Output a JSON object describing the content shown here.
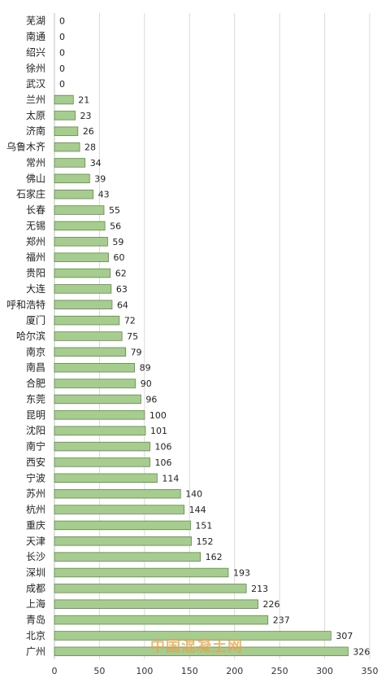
{
  "chart_data": {
    "type": "bar",
    "orientation": "horizontal",
    "categories": [
      "芜湖",
      "南通",
      "绍兴",
      "徐州",
      "武汉",
      "兰州",
      "太原",
      "济南",
      "乌鲁木齐",
      "常州",
      "佛山",
      "石家庄",
      "长春",
      "无锡",
      "郑州",
      "福州",
      "贵阳",
      "大连",
      "呼和浩特",
      "厦门",
      "哈尔滨",
      "南京",
      "南昌",
      "合肥",
      "东莞",
      "昆明",
      "沈阳",
      "南宁",
      "西安",
      "宁波",
      "苏州",
      "杭州",
      "重庆",
      "天津",
      "长沙",
      "深圳",
      "成都",
      "上海",
      "青岛",
      "北京",
      "广州"
    ],
    "values": [
      0,
      0,
      0,
      0,
      0,
      21,
      23,
      26,
      28,
      34,
      39,
      43,
      55,
      56,
      59,
      60,
      62,
      63,
      64,
      72,
      75,
      79,
      89,
      90,
      96,
      100,
      101,
      106,
      106,
      114,
      140,
      144,
      151,
      152,
      162,
      193,
      213,
      226,
      237,
      307,
      326
    ],
    "xticks": [
      0,
      50,
      100,
      150,
      200,
      250,
      300,
      350
    ],
    "xlim": [
      0,
      350
    ],
    "grid": true,
    "bar_color": "#a7cc8f",
    "bar_edge_color": "#5f8a45",
    "title": "",
    "xlabel": "",
    "ylabel": ""
  },
  "watermark": "中国混凝土网",
  "colors": {
    "grid": "#d9d9d9",
    "axis": "#bfbfbf",
    "watermark": "#e8a24a"
  }
}
